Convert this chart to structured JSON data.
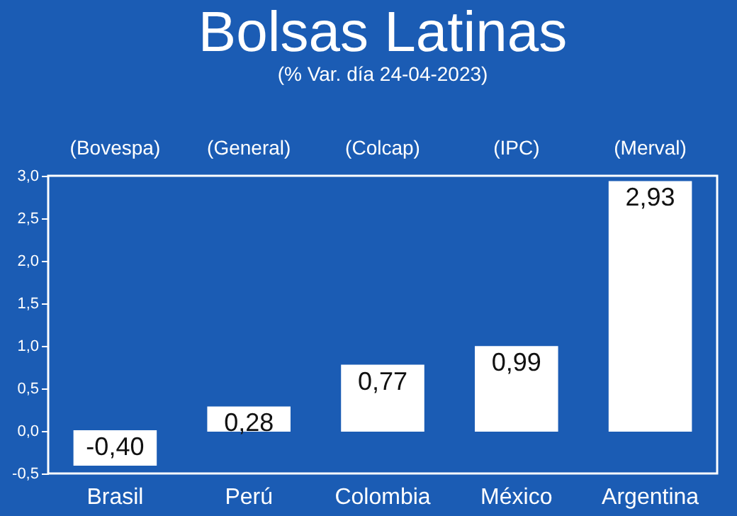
{
  "chart_data": {
    "type": "bar",
    "title": "Bolsas Latinas",
    "subtitle": "(% Var. día 24-04-2023)",
    "categories": [
      "Brasil",
      "Perú",
      "Colombia",
      "México",
      "Argentina"
    ],
    "values": [
      -0.4,
      0.28,
      0.77,
      0.99,
      2.93
    ],
    "value_labels": [
      "-0,40",
      "0,28",
      "0,77",
      "0,99",
      "2,93"
    ],
    "color": "#ffffff",
    "ylim": [
      -0.5,
      3.0
    ],
    "yticks": [
      {
        "value": -0.5,
        "label": "-0,5"
      },
      {
        "value": 0,
        "label": "0,0"
      },
      {
        "value": 0.5,
        "label": "0,5"
      },
      {
        "value": 1,
        "label": "1,0"
      },
      {
        "value": 1.5,
        "label": "1,5"
      },
      {
        "value": 2,
        "label": "2,0"
      },
      {
        "value": 2.5,
        "label": "2,5"
      },
      {
        "value": 3,
        "label": "3,0"
      }
    ],
    "annotations": [
      "(Bovespa)",
      "(General)",
      "(Colcap)",
      "(IPC)",
      "(Merval)"
    ],
    "grid": false
  }
}
